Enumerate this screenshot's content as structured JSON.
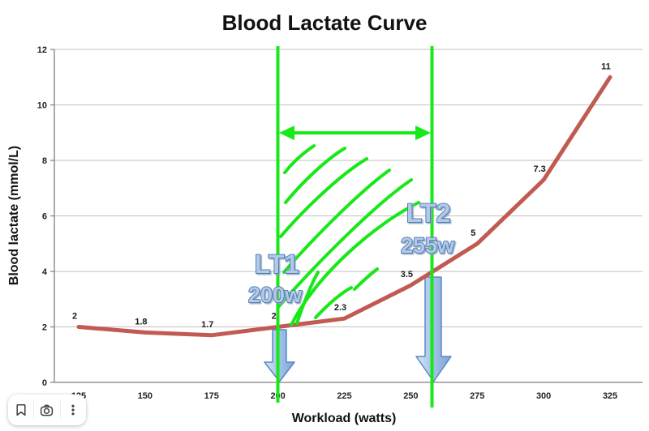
{
  "title": "Blood Lactate Curve",
  "chart_data": {
    "type": "line",
    "title": "Blood Lactate Curve",
    "xlabel": "Workload (watts)",
    "ylabel": "Blood lactate (mmol/L)",
    "x": [
      125,
      150,
      175,
      200,
      225,
      250,
      275,
      300,
      325
    ],
    "values": [
      2,
      1.8,
      1.7,
      2,
      2.3,
      3.5,
      5,
      7.3,
      11
    ],
    "data_labels": [
      "2",
      "1.8",
      "1.7",
      "2",
      "2.3",
      "3.5",
      "5",
      "7.3",
      "11"
    ],
    "xticks": [
      "125",
      "150",
      "175",
      "200",
      "225",
      "250",
      "275",
      "300",
      "325"
    ],
    "yticks": [
      "0",
      "2",
      "4",
      "6",
      "8",
      "10",
      "12"
    ],
    "ylim": [
      0,
      12
    ],
    "grid": "horizontal",
    "legend": "none",
    "line_color": "#c05a52",
    "annotations": {
      "lt1": {
        "label": "LT1",
        "watts": "200w"
      },
      "lt2": {
        "label": "LT2",
        "watts": "255w"
      },
      "green_color": "#17e817",
      "arrow_blue_color": "#9dbfe4"
    }
  },
  "toolbar": {
    "icons": [
      "bookmark",
      "search-inside-image",
      "more-options"
    ]
  }
}
